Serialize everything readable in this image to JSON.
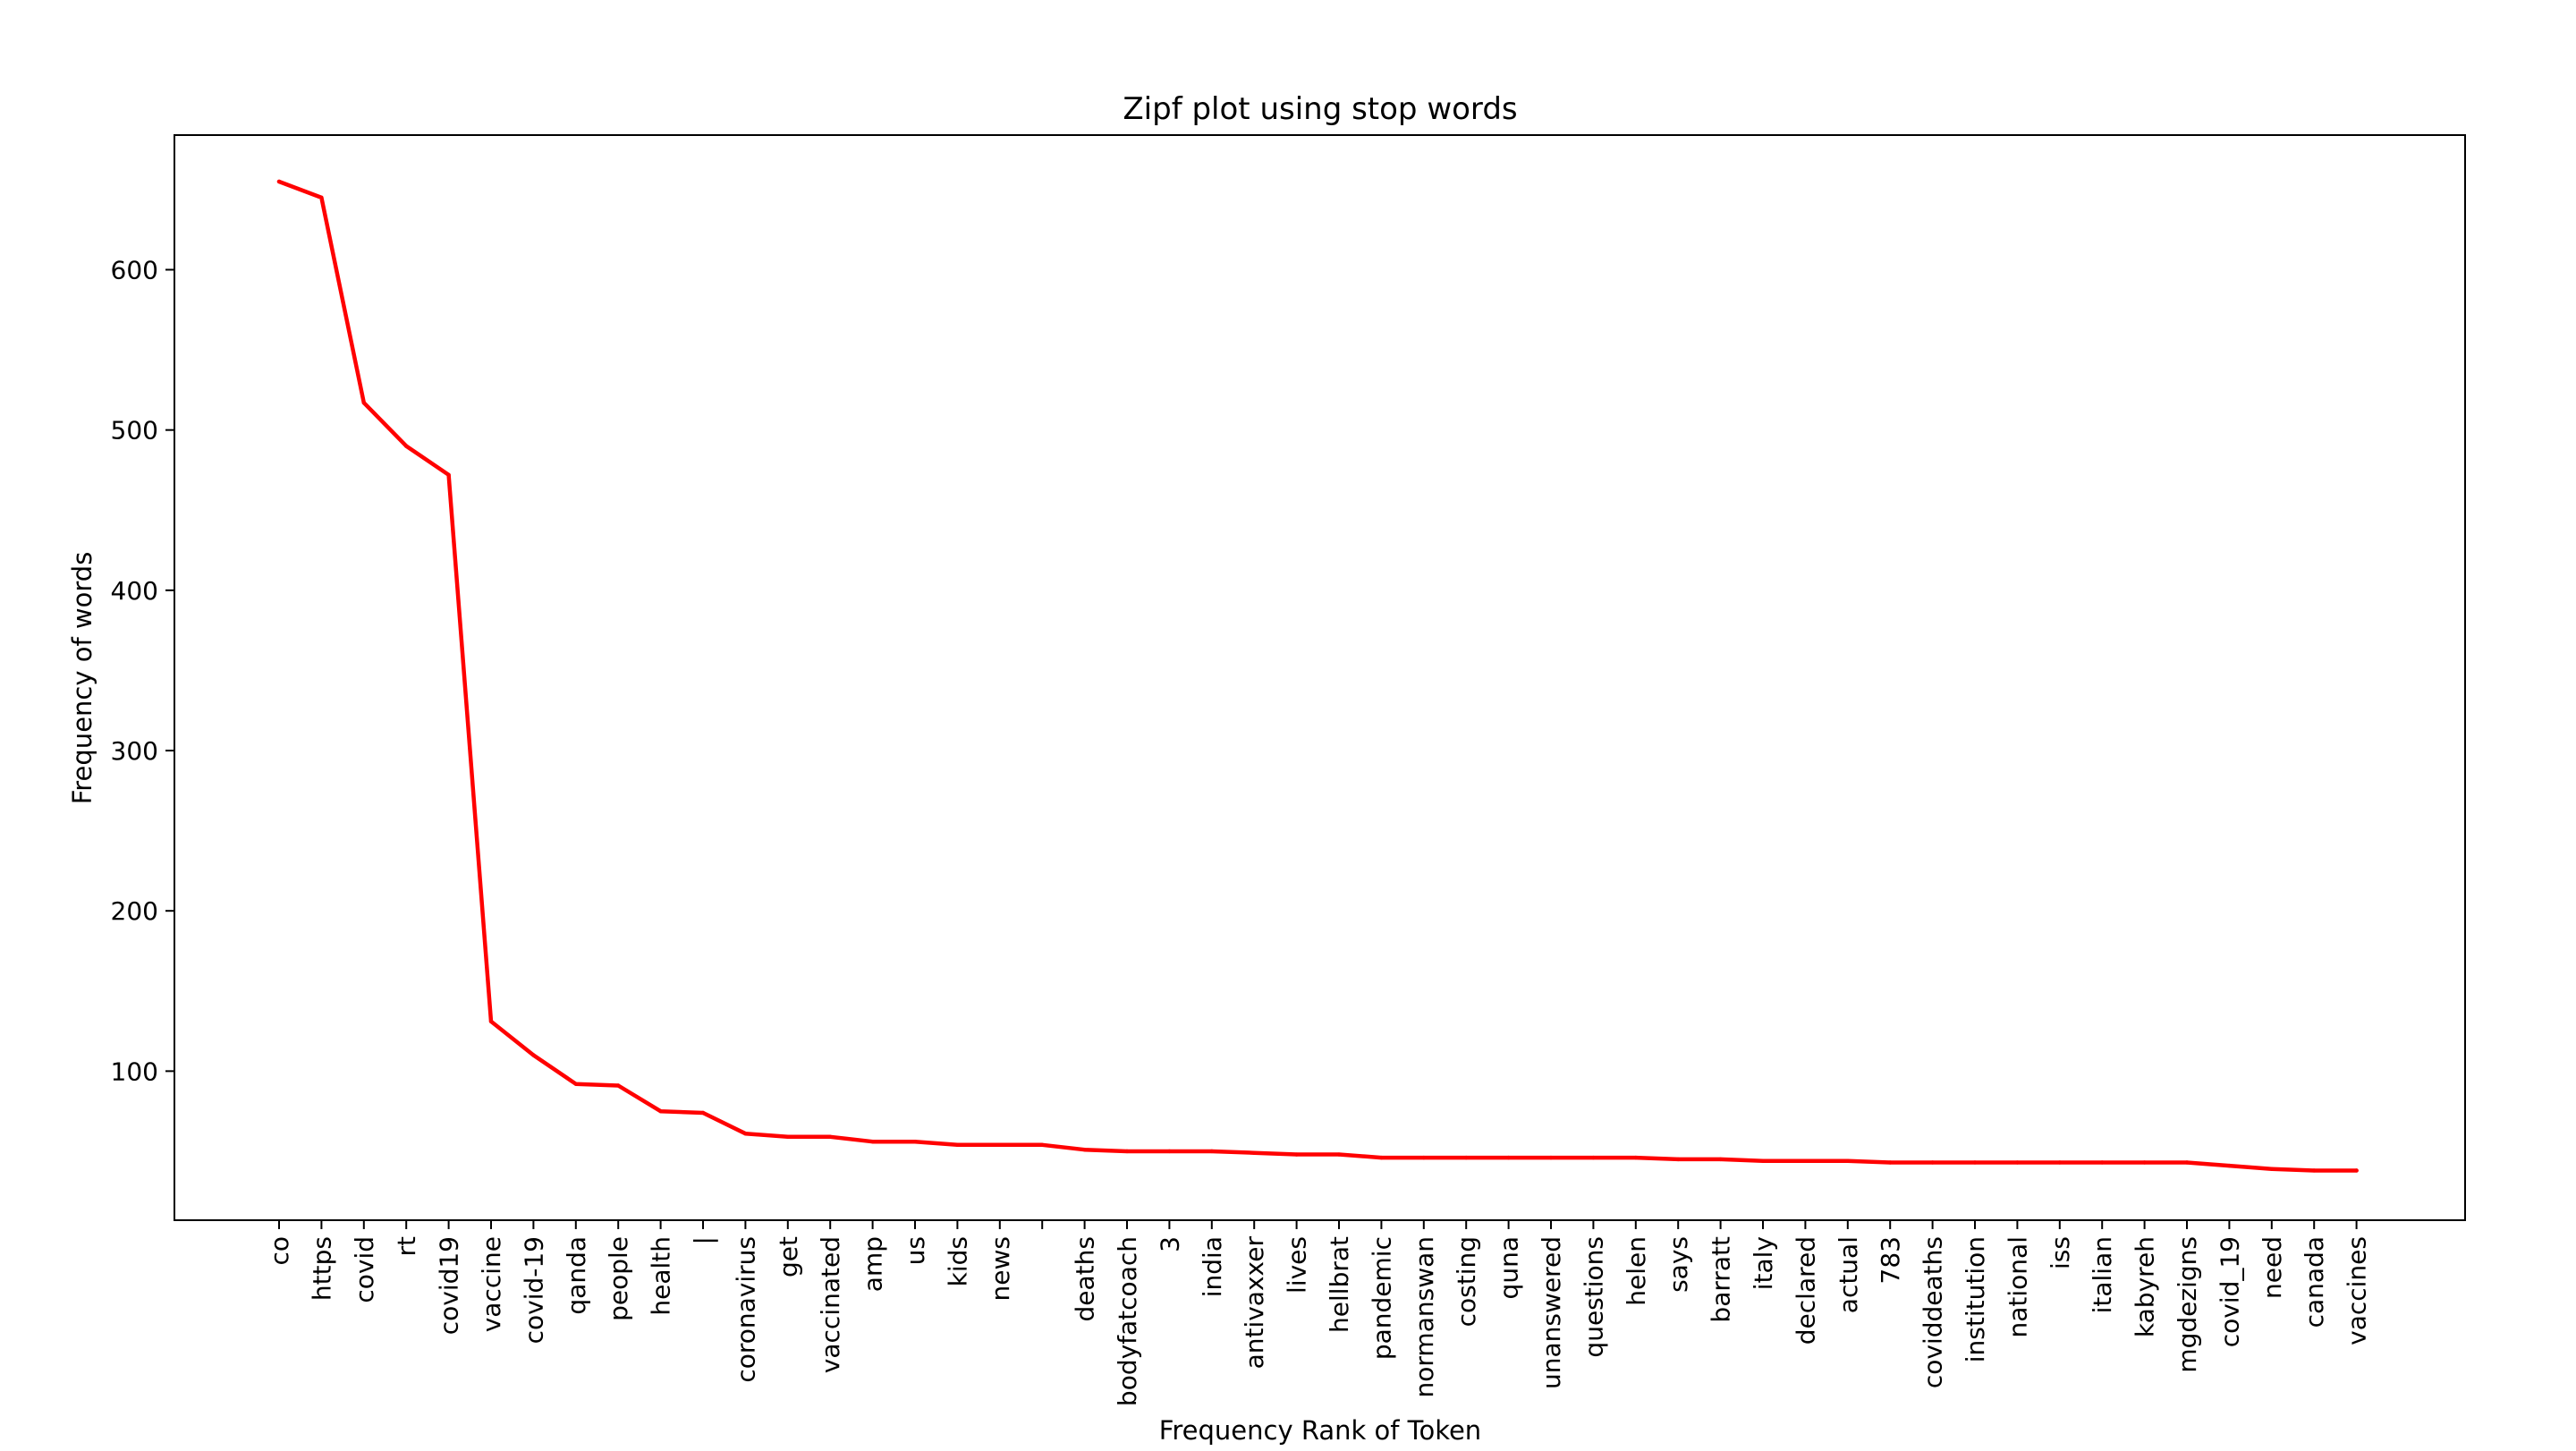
{
  "chart_data": {
    "type": "line",
    "title": "Zipf plot using stop words",
    "xlabel": "Frequency Rank of Token",
    "ylabel": "Frequency of words",
    "line_color": "#ff0000",
    "grid": false,
    "ylim": [
      7,
      684
    ],
    "yticks": [
      100,
      200,
      300,
      400,
      500,
      600
    ],
    "categories": [
      "co",
      "https",
      "covid",
      "rt",
      "covid19",
      "vaccine",
      "covid-19",
      "qanda",
      "people",
      "health",
      "|",
      "coronavirus",
      "get",
      "vaccinated",
      "amp",
      "us",
      "kids",
      "news",
      "",
      "deaths",
      "bodyfatcoach",
      "3",
      "india",
      "antivaxxer",
      "lives",
      "hellbrat",
      "pandemic",
      "normanswan",
      "costing",
      "quna",
      "unanswered",
      "questions",
      "helen",
      "says",
      "barratt",
      "italy",
      "declared",
      "actual",
      "783",
      "coviddeaths",
      "institution",
      "national",
      "iss",
      "italian",
      "kabyreh",
      "mgdezigns",
      "covid_19",
      "need",
      "canada",
      "vaccines"
    ],
    "series": [
      {
        "values": [
          655,
          645,
          517,
          490,
          472,
          131,
          110,
          92,
          91,
          75,
          74,
          61,
          59,
          59,
          56,
          56,
          54,
          54,
          54,
          51,
          50,
          50,
          50,
          49,
          48,
          48,
          46,
          46,
          46,
          46,
          46,
          46,
          46,
          45,
          45,
          44,
          44,
          44,
          43,
          43,
          43,
          43,
          43,
          43,
          43,
          43,
          41,
          39,
          38,
          38
        ]
      }
    ]
  }
}
